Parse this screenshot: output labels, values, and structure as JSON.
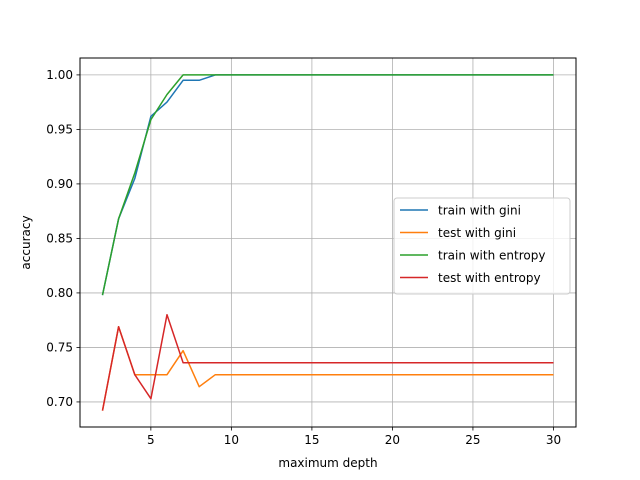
{
  "chart_data": {
    "type": "line",
    "title": "",
    "xlabel": "maximum depth",
    "ylabel": "accuracy",
    "xlim": [
      0.6,
      31.4
    ],
    "ylim": [
      0.677,
      1.0155
    ],
    "xticks": [
      5,
      10,
      15,
      20,
      25,
      30
    ],
    "yticks": [
      0.7,
      0.75,
      0.8,
      0.85,
      0.9,
      0.95,
      1.0
    ],
    "ytick_labels": [
      "0.70",
      "0.75",
      "0.80",
      "0.85",
      "0.90",
      "0.95",
      "1.00"
    ],
    "grid": true,
    "legend_position": "center-right",
    "x": [
      2,
      3,
      4,
      5,
      6,
      7,
      8,
      9,
      10,
      11,
      12,
      13,
      14,
      15,
      16,
      17,
      18,
      19,
      20,
      21,
      22,
      23,
      24,
      25,
      26,
      27,
      28,
      29,
      30
    ],
    "series": [
      {
        "name": "train with gini",
        "color": "#1f77b4",
        "values": [
          0.798,
          0.868,
          0.905,
          0.962,
          0.975,
          0.995,
          0.995,
          1.0,
          1.0,
          1.0,
          1.0,
          1.0,
          1.0,
          1.0,
          1.0,
          1.0,
          1.0,
          1.0,
          1.0,
          1.0,
          1.0,
          1.0,
          1.0,
          1.0,
          1.0,
          1.0,
          1.0,
          1.0,
          1.0
        ]
      },
      {
        "name": "test with gini",
        "color": "#ff7f0e",
        "values": [
          0.692,
          0.769,
          0.725,
          0.725,
          0.725,
          0.747,
          0.714,
          0.725,
          0.725,
          0.725,
          0.725,
          0.725,
          0.725,
          0.725,
          0.725,
          0.725,
          0.725,
          0.725,
          0.725,
          0.725,
          0.725,
          0.725,
          0.725,
          0.725,
          0.725,
          0.725,
          0.725,
          0.725,
          0.725
        ]
      },
      {
        "name": "train with entropy",
        "color": "#2ca02c",
        "values": [
          0.798,
          0.868,
          0.91,
          0.959,
          0.982,
          1.0,
          1.0,
          1.0,
          1.0,
          1.0,
          1.0,
          1.0,
          1.0,
          1.0,
          1.0,
          1.0,
          1.0,
          1.0,
          1.0,
          1.0,
          1.0,
          1.0,
          1.0,
          1.0,
          1.0,
          1.0,
          1.0,
          1.0,
          1.0
        ]
      },
      {
        "name": "test with entropy",
        "color": "#d62728",
        "values": [
          0.692,
          0.769,
          0.725,
          0.703,
          0.78,
          0.736,
          0.736,
          0.736,
          0.736,
          0.736,
          0.736,
          0.736,
          0.736,
          0.736,
          0.736,
          0.736,
          0.736,
          0.736,
          0.736,
          0.736,
          0.736,
          0.736,
          0.736,
          0.736,
          0.736,
          0.736,
          0.736,
          0.736,
          0.736
        ]
      }
    ]
  }
}
